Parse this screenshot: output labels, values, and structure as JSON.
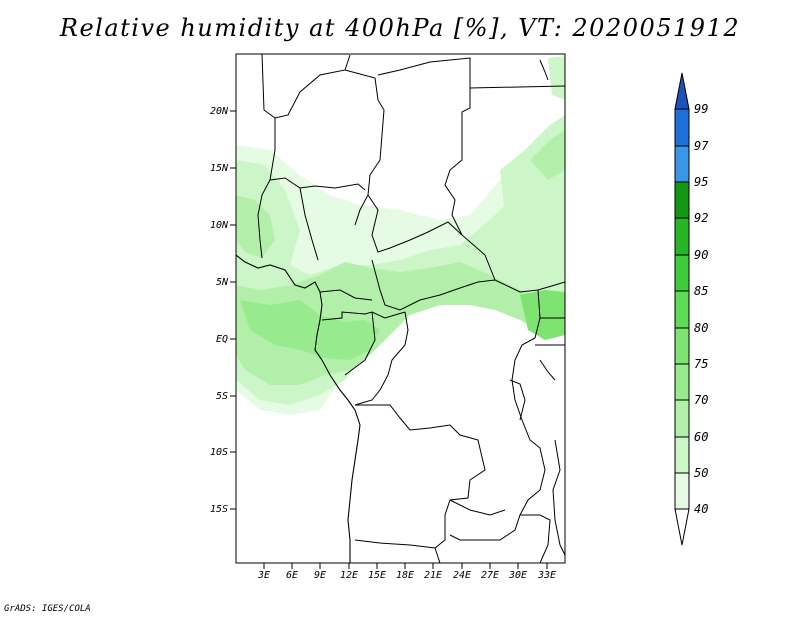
{
  "title": "Relative humidity at 400hPa [%], VT: 2020051912",
  "credit": "GrADS: IGES/COLA",
  "map": {
    "lat_ticks": [
      "20N",
      "15N",
      "10N",
      "5N",
      "EQ",
      "5S",
      "10S",
      "15S"
    ],
    "lon_ticks": [
      "3E",
      "6E",
      "9E",
      "12E",
      "15E",
      "18E",
      "21E",
      "24E",
      "27E",
      "30E",
      "33E"
    ]
  },
  "colorbar": {
    "levels": [
      "40",
      "50",
      "60",
      "70",
      "75",
      "80",
      "85",
      "90",
      "92",
      "95",
      "97",
      "99"
    ],
    "colors": [
      "#ffffff",
      "#e6fbe4",
      "#cdf6c8",
      "#b2f0a9",
      "#97eb8d",
      "#7ee371",
      "#5edc55",
      "#3fcc3c",
      "#27b527",
      "#139813",
      "#3a96e8",
      "#1f70d8",
      "#1d52b8"
    ]
  }
}
